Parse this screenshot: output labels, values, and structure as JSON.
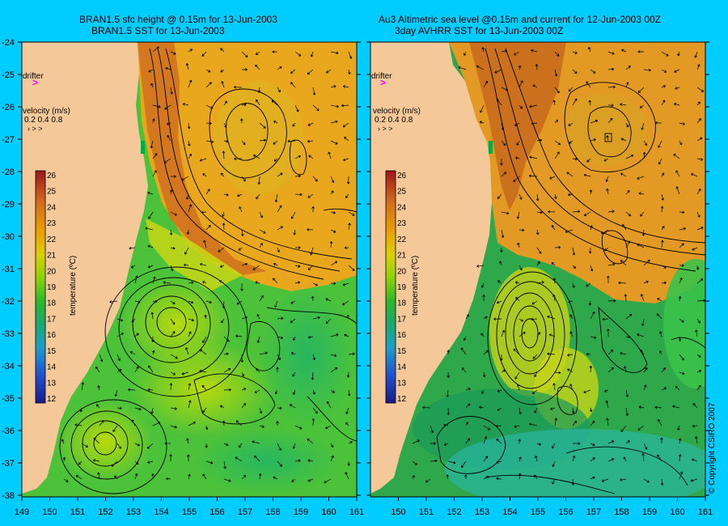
{
  "left_panel": {
    "title_line1": "BRAN1.5 sfc height @ 0.15m for 13-Jun-2003",
    "title_line2": "BRAN1.5 SST for 13-Jun-2003",
    "drifter_label": "drifter",
    "velocity_label": "velocity (m/s)",
    "velocity_scale": "0.2 0.4 0.8",
    "colorbar_label": "temperature (ºC)"
  },
  "right_panel": {
    "title_line1": "Au3 Altimetric sea level  @0.15m and current for 12-Jun-2003 00Z",
    "title_line2": "3day AVHRR SST for 13-Jun-2003 00Z",
    "drifter_label": "drifter",
    "velocity_label": "velocity (m/s)",
    "velocity_scale": "0.2 0.4 0.8",
    "colorbar_label": "temperature (ºC)"
  },
  "copyright": "© Copyright CSIRO 2007",
  "lat_ticks": [
    "-24",
    "-25",
    "-26",
    "-27",
    "-28",
    "-29",
    "-30",
    "-31",
    "-32",
    "-33",
    "-34",
    "-35",
    "-36",
    "-37",
    "-38"
  ],
  "lon_ticks_left": [
    "149",
    "150",
    "151",
    "152",
    "153",
    "154",
    "155",
    "156",
    "157",
    "158",
    "159",
    "160",
    "161"
  ],
  "lon_ticks_right": [
    "150",
    "151",
    "152",
    "153",
    "154",
    "155",
    "156",
    "157",
    "158",
    "159",
    "160",
    "161"
  ],
  "colorbar_ticks": [
    "26",
    "25",
    "24",
    "23",
    "22",
    "21",
    "20",
    "19",
    "18",
    "17",
    "16",
    "15",
    "14",
    "13",
    "12"
  ],
  "colors": {
    "background": "#00ccff",
    "land": "#f5c89a",
    "drifter": "#ff00ff"
  }
}
